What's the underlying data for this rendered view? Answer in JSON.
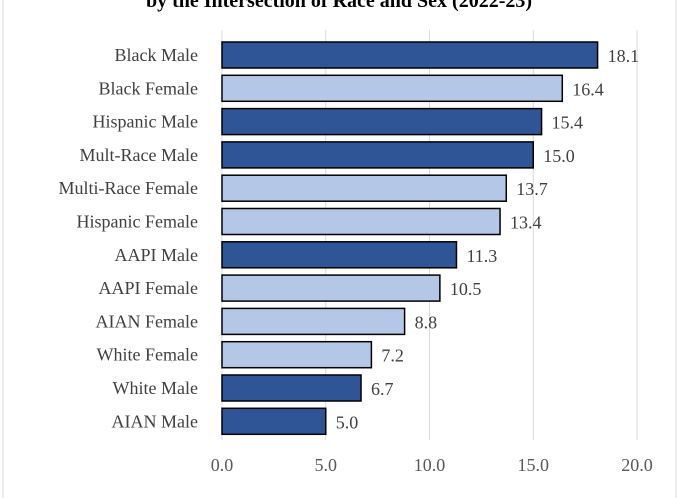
{
  "chart_data": {
    "type": "bar",
    "orientation": "horizontal",
    "title": "by the Intersection of Race and Sex (2022-23)",
    "categories": [
      "Black Male",
      "Black Female",
      "Hispanic Male",
      "Mult-Race Male",
      "Multi-Race Female",
      "Hispanic Female",
      "AAPI Male",
      "AAPI Female",
      "AIAN Female",
      "White Female",
      "White Male",
      "AIAN Male"
    ],
    "values": [
      18.1,
      16.4,
      15.4,
      15.0,
      13.7,
      13.4,
      11.3,
      10.5,
      8.8,
      7.2,
      6.7,
      5.0
    ],
    "value_labels": [
      "18.1",
      "16.4",
      "15.4",
      "15.0",
      "13.7",
      "13.4",
      "11.3",
      "10.5",
      "8.8",
      "7.2",
      "6.7",
      "5.0"
    ],
    "sex": [
      "Male",
      "Female",
      "Male",
      "Male",
      "Female",
      "Female",
      "Male",
      "Female",
      "Female",
      "Female",
      "Male",
      "Male"
    ],
    "xlim": [
      0,
      20
    ],
    "xticks": [
      0,
      5,
      10,
      15,
      20
    ],
    "xtick_labels": [
      "0.0",
      "5.0",
      "10.0",
      "15.0",
      "20.0"
    ],
    "grid": true,
    "legend": "none",
    "colors": {
      "Male": "#2f5597",
      "Female": "#b4c7e7",
      "bar_border": "#000000",
      "grid": "#d9d9d9",
      "frame": "#d9d9d9"
    }
  }
}
